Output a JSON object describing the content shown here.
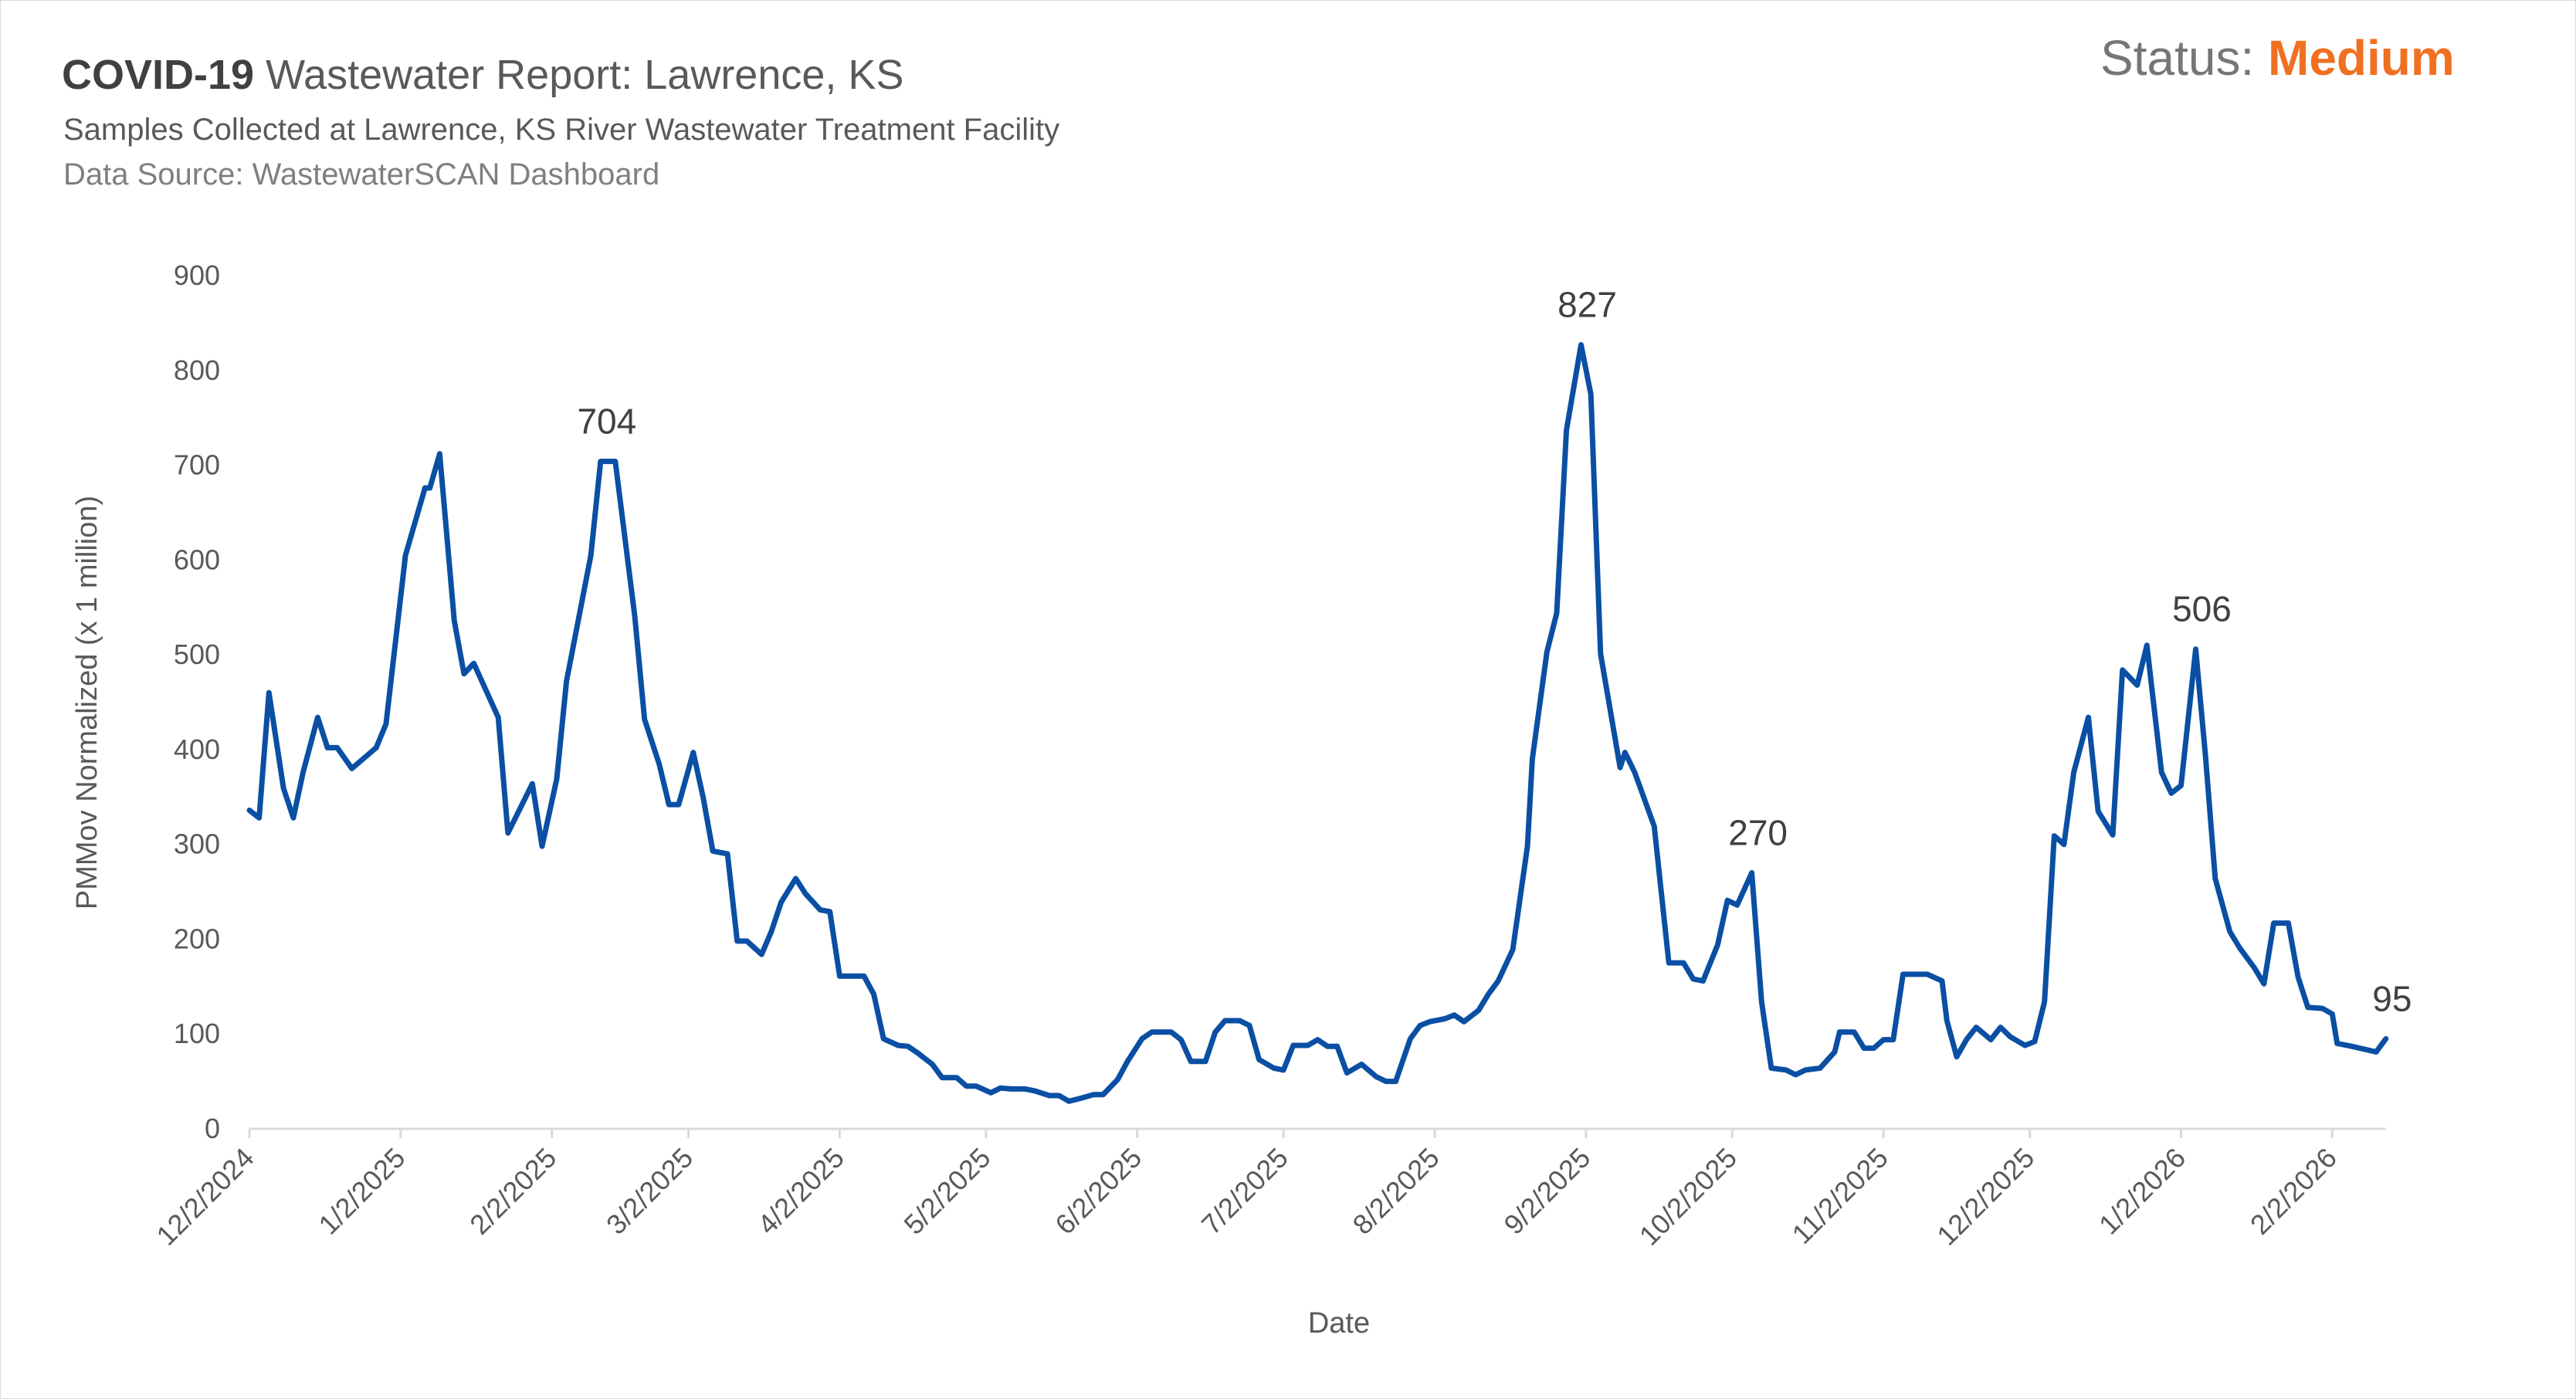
{
  "header": {
    "title_bold": "COVID-19",
    "title_rest": "Wastewater Report: Lawrence, KS",
    "subtitle": "Samples Collected at Lawrence, KS River Wastewater Treatment Facility",
    "source": "Data Source: WastewaterSCAN Dashboard",
    "status_label": "Status:",
    "status_value": "Medium",
    "status_color": "#f07022"
  },
  "chart_data": {
    "type": "line",
    "xlabel": "Date",
    "ylabel": "PMMov Normalized (x 1 million)",
    "ylim": [
      0,
      900
    ],
    "yticks": [
      0,
      100,
      200,
      300,
      400,
      500,
      600,
      700,
      800,
      900
    ],
    "xticks": [
      "12/2/2024",
      "1/2/2025",
      "2/2/2025",
      "3/2/2025",
      "4/2/2025",
      "5/2/2025",
      "6/2/2025",
      "7/2/2025",
      "8/2/2025",
      "9/2/2025",
      "10/2/2025",
      "11/2/2025",
      "12/2/2025",
      "1/2/2026",
      "2/2/2026"
    ],
    "grid": false,
    "line_color": "#0a4fa3",
    "series": [
      {
        "points": [
          [
            "2024-12-02",
            336
          ],
          [
            "2024-12-04",
            328
          ],
          [
            "2024-12-06",
            460
          ],
          [
            "2024-12-09",
            359
          ],
          [
            "2024-12-11",
            328
          ],
          [
            "2024-12-13",
            376
          ],
          [
            "2024-12-16",
            434
          ],
          [
            "2024-12-18",
            402
          ],
          [
            "2024-12-20",
            402
          ],
          [
            "2024-12-23",
            380
          ],
          [
            "2024-12-28",
            402
          ],
          [
            "2024-12-30",
            427
          ],
          [
            "2025-01-03",
            605
          ],
          [
            "2025-01-07",
            676
          ],
          [
            "2025-01-08",
            676
          ],
          [
            "2025-01-10",
            712
          ],
          [
            "2025-01-13",
            536
          ],
          [
            "2025-01-15",
            480
          ],
          [
            "2025-01-17",
            491
          ],
          [
            "2025-01-22",
            434
          ],
          [
            "2025-01-24",
            312
          ],
          [
            "2025-01-29",
            364
          ],
          [
            "2025-01-31",
            298
          ],
          [
            "2025-02-03",
            369
          ],
          [
            "2025-02-05",
            472
          ],
          [
            "2025-02-10",
            605
          ],
          [
            "2025-02-12",
            704
          ],
          [
            "2025-02-15",
            704
          ],
          [
            "2025-02-19",
            541
          ],
          [
            "2025-02-21",
            432
          ],
          [
            "2025-02-24",
            385
          ],
          [
            "2025-02-26",
            342
          ],
          [
            "2025-02-28",
            342
          ],
          [
            "2025-03-03",
            397
          ],
          [
            "2025-03-05",
            350
          ],
          [
            "2025-03-07",
            293
          ],
          [
            "2025-03-10",
            290
          ],
          [
            "2025-03-12",
            198
          ],
          [
            "2025-03-14",
            198
          ],
          [
            "2025-03-17",
            184
          ],
          [
            "2025-03-19",
            208
          ],
          [
            "2025-03-21",
            239
          ],
          [
            "2025-03-24",
            264
          ],
          [
            "2025-03-26",
            248
          ],
          [
            "2025-03-29",
            231
          ],
          [
            "2025-03-31",
            229
          ],
          [
            "2025-04-02",
            161
          ],
          [
            "2025-04-07",
            161
          ],
          [
            "2025-04-09",
            142
          ],
          [
            "2025-04-11",
            95
          ],
          [
            "2025-04-14",
            88
          ],
          [
            "2025-04-16",
            87
          ],
          [
            "2025-04-18",
            80
          ],
          [
            "2025-04-21",
            68
          ],
          [
            "2025-04-23",
            54
          ],
          [
            "2025-04-26",
            54
          ],
          [
            "2025-04-28",
            45
          ],
          [
            "2025-04-30",
            45
          ],
          [
            "2025-05-03",
            38
          ],
          [
            "2025-05-05",
            43
          ],
          [
            "2025-05-07",
            42
          ],
          [
            "2025-05-10",
            42
          ],
          [
            "2025-05-12",
            40
          ],
          [
            "2025-05-15",
            35
          ],
          [
            "2025-05-17",
            35
          ],
          [
            "2025-05-19",
            29
          ],
          [
            "2025-05-22",
            33
          ],
          [
            "2025-05-24",
            36
          ],
          [
            "2025-05-26",
            36
          ],
          [
            "2025-05-29",
            52
          ],
          [
            "2025-05-31",
            71
          ],
          [
            "2025-06-03",
            95
          ],
          [
            "2025-06-05",
            102
          ],
          [
            "2025-06-09",
            102
          ],
          [
            "2025-06-11",
            94
          ],
          [
            "2025-06-13",
            71
          ],
          [
            "2025-06-16",
            71
          ],
          [
            "2025-06-18",
            102
          ],
          [
            "2025-06-20",
            114
          ],
          [
            "2025-06-23",
            114
          ],
          [
            "2025-06-25",
            109
          ],
          [
            "2025-06-27",
            73
          ],
          [
            "2025-06-30",
            64
          ],
          [
            "2025-07-02",
            62
          ],
          [
            "2025-07-04",
            88
          ],
          [
            "2025-07-07",
            88
          ],
          [
            "2025-07-09",
            94
          ],
          [
            "2025-07-11",
            87
          ],
          [
            "2025-07-13",
            87
          ],
          [
            "2025-07-15",
            59
          ],
          [
            "2025-07-18",
            68
          ],
          [
            "2025-07-21",
            55
          ],
          [
            "2025-07-23",
            50
          ],
          [
            "2025-07-25",
            50
          ],
          [
            "2025-07-28",
            95
          ],
          [
            "2025-07-30",
            109
          ],
          [
            "2025-08-01",
            113
          ],
          [
            "2025-08-04",
            116
          ],
          [
            "2025-08-06",
            120
          ],
          [
            "2025-08-08",
            113
          ],
          [
            "2025-08-11",
            125
          ],
          [
            "2025-08-13",
            142
          ],
          [
            "2025-08-15",
            156
          ],
          [
            "2025-08-18",
            189
          ],
          [
            "2025-08-21",
            298
          ],
          [
            "2025-08-22",
            390
          ],
          [
            "2025-08-25",
            503
          ],
          [
            "2025-08-27",
            544
          ],
          [
            "2025-08-29",
            737
          ],
          [
            "2025-09-01",
            827
          ],
          [
            "2025-09-03",
            775
          ],
          [
            "2025-09-05",
            501
          ],
          [
            "2025-09-09",
            381
          ],
          [
            "2025-09-10",
            397
          ],
          [
            "2025-09-12",
            376
          ],
          [
            "2025-09-16",
            319
          ],
          [
            "2025-09-19",
            175
          ],
          [
            "2025-09-22",
            175
          ],
          [
            "2025-09-24",
            158
          ],
          [
            "2025-09-26",
            156
          ],
          [
            "2025-09-29",
            194
          ],
          [
            "2025-10-01",
            241
          ],
          [
            "2025-10-03",
            236
          ],
          [
            "2025-10-06",
            270
          ],
          [
            "2025-10-08",
            134
          ],
          [
            "2025-10-10",
            64
          ],
          [
            "2025-10-13",
            62
          ],
          [
            "2025-10-15",
            57
          ],
          [
            "2025-10-17",
            62
          ],
          [
            "2025-10-20",
            64
          ],
          [
            "2025-10-23",
            81
          ],
          [
            "2025-10-24",
            102
          ],
          [
            "2025-10-27",
            102
          ],
          [
            "2025-10-29",
            85
          ],
          [
            "2025-10-31",
            85
          ],
          [
            "2025-11-02",
            94
          ],
          [
            "2025-11-04",
            94
          ],
          [
            "2025-11-06",
            163
          ],
          [
            "2025-11-09",
            163
          ],
          [
            "2025-11-11",
            163
          ],
          [
            "2025-11-14",
            156
          ],
          [
            "2025-11-15",
            114
          ],
          [
            "2025-11-17",
            76
          ],
          [
            "2025-11-19",
            94
          ],
          [
            "2025-11-21",
            107
          ],
          [
            "2025-11-24",
            94
          ],
          [
            "2025-11-26",
            107
          ],
          [
            "2025-11-28",
            97
          ],
          [
            "2025-12-01",
            88
          ],
          [
            "2025-12-03",
            92
          ],
          [
            "2025-12-05",
            134
          ],
          [
            "2025-12-07",
            309
          ],
          [
            "2025-12-09",
            300
          ],
          [
            "2025-12-11",
            376
          ],
          [
            "2025-12-14",
            434
          ],
          [
            "2025-12-16",
            335
          ],
          [
            "2025-12-19",
            310
          ],
          [
            "2025-12-21",
            484
          ],
          [
            "2025-12-24",
            468
          ],
          [
            "2025-12-26",
            510
          ],
          [
            "2025-12-29",
            376
          ],
          [
            "2025-12-31",
            354
          ],
          [
            "2026-01-02",
            362
          ],
          [
            "2026-01-05",
            506
          ],
          [
            "2026-01-07",
            394
          ],
          [
            "2026-01-09",
            264
          ],
          [
            "2026-01-12",
            208
          ],
          [
            "2026-01-14",
            191
          ],
          [
            "2026-01-17",
            170
          ],
          [
            "2026-01-19",
            153
          ],
          [
            "2026-01-21",
            217
          ],
          [
            "2026-01-24",
            217
          ],
          [
            "2026-01-26",
            160
          ],
          [
            "2026-01-28",
            128
          ],
          [
            "2026-01-31",
            127
          ],
          [
            "2026-02-02",
            121
          ],
          [
            "2026-02-03",
            90
          ],
          [
            "2026-02-06",
            87
          ],
          [
            "2026-02-11",
            81
          ],
          [
            "2026-02-13",
            95
          ]
        ]
      }
    ],
    "data_labels": [
      {
        "date": "2025-02-12",
        "text": "704"
      },
      {
        "date": "2025-09-01",
        "text": "827"
      },
      {
        "date": "2025-10-06",
        "text": "270"
      },
      {
        "date": "2026-01-05",
        "text": "506"
      },
      {
        "date": "2026-02-13",
        "text": "95"
      }
    ]
  }
}
